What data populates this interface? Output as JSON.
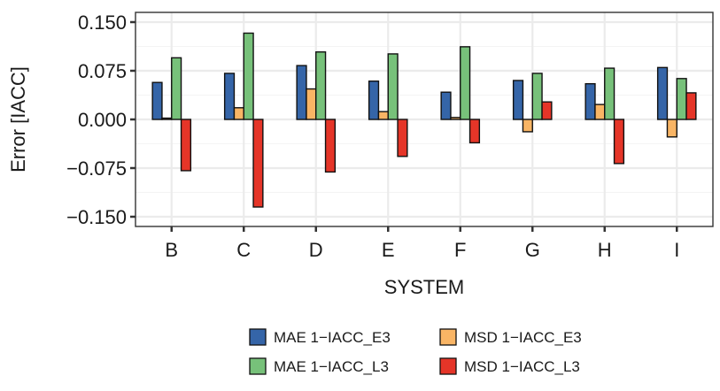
{
  "chart_data": {
    "type": "bar",
    "title": "",
    "xlabel": "SYSTEM",
    "ylabel": "Error [IACC]",
    "categories": [
      "B",
      "C",
      "D",
      "E",
      "F",
      "G",
      "H",
      "I"
    ],
    "ylim": [
      -0.165,
      0.165
    ],
    "yticks": [
      0.15,
      0.075,
      0.0,
      -0.075,
      -0.15
    ],
    "ytick_labels": [
      "0.150",
      "0.075",
      "0.000",
      "−0.075",
      "−0.150"
    ],
    "grid": true,
    "legend_position": "bottom",
    "series": [
      {
        "name": "MAE 1−IACC_E3",
        "color": "#3565a8",
        "values": [
          0.057,
          0.071,
          0.083,
          0.059,
          0.042,
          0.06,
          0.055,
          0.08
        ]
      },
      {
        "name": "MSD 1−IACC_E3",
        "color": "#f9b565",
        "values": [
          0.002,
          0.018,
          0.047,
          0.012,
          0.003,
          -0.019,
          0.023,
          -0.027
        ]
      },
      {
        "name": "MAE 1−IACC_L3",
        "color": "#77c17a",
        "values": [
          0.095,
          0.133,
          0.104,
          0.101,
          0.112,
          0.071,
          0.079,
          0.063
        ]
      },
      {
        "name": "MSD 1−IACC_L3",
        "color": "#e53528",
        "values": [
          -0.079,
          -0.135,
          -0.081,
          -0.057,
          -0.036,
          0.027,
          -0.068,
          0.041
        ]
      }
    ]
  }
}
